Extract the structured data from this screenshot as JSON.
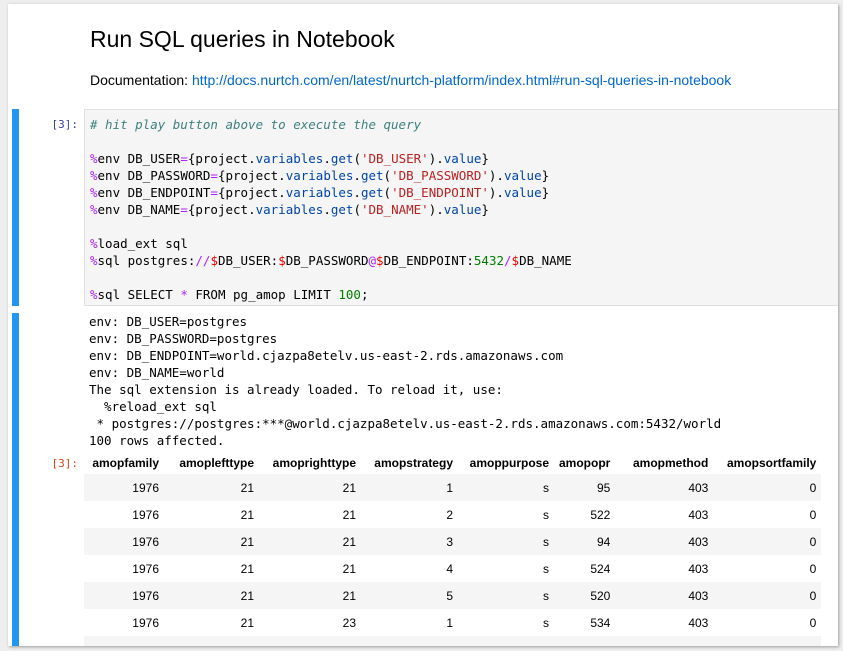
{
  "title": "Run SQL queries in Notebook",
  "doc_label": "Documentation: ",
  "doc_link": "http://docs.nurtch.com/en/latest/nurtch-platform/index.html#run-sql-queries-in-notebook",
  "cell": {
    "in_prompt": "[3]:",
    "out_prompt": "[3]:"
  },
  "code_lines": [
    "# hit play button above to execute the query",
    "",
    "%env DB_USER={project.variables.get('DB_USER').value}",
    "%env DB_PASSWORD={project.variables.get('DB_PASSWORD').value}",
    "%env DB_ENDPOINT={project.variables.get('DB_ENDPOINT').value}",
    "%env DB_NAME={project.variables.get('DB_NAME').value}",
    "",
    "%load_ext sql",
    "%sql postgres://$DB_USER:$DB_PASSWORD@$DB_ENDPOINT:5432/$DB_NAME",
    "",
    "%sql SELECT * FROM pg_amop LIMIT 100;"
  ],
  "output_text": "env: DB_USER=postgres\nenv: DB_PASSWORD=postgres\nenv: DB_ENDPOINT=world.cjazpa8etelv.us-east-2.rds.amazonaws.com\nenv: DB_NAME=world\nThe sql extension is already loaded. To reload it, use:\n  %reload_ext sql\n * postgres://postgres:***@world.cjazpa8etelv.us-east-2.rds.amazonaws.com:5432/world\n100 rows affected.",
  "table": {
    "columns": [
      "amopfamily",
      "amoplefttype",
      "amoprighttype",
      "amopstrategy",
      "amoppurpose",
      "amopopr",
      "amopmethod",
      "amopsortfamily"
    ],
    "rows": [
      [
        "1976",
        "21",
        "21",
        "1",
        "s",
        "95",
        "403",
        "0"
      ],
      [
        "1976",
        "21",
        "21",
        "2",
        "s",
        "522",
        "403",
        "0"
      ],
      [
        "1976",
        "21",
        "21",
        "3",
        "s",
        "94",
        "403",
        "0"
      ],
      [
        "1976",
        "21",
        "21",
        "4",
        "s",
        "524",
        "403",
        "0"
      ],
      [
        "1976",
        "21",
        "21",
        "5",
        "s",
        "520",
        "403",
        "0"
      ],
      [
        "1976",
        "21",
        "23",
        "1",
        "s",
        "534",
        "403",
        "0"
      ],
      [
        "",
        "",
        "",
        "",
        "",
        "",
        "",
        ""
      ]
    ]
  },
  "colors": {
    "accent": "#2196f3",
    "link": "#0066cc",
    "in_prompt": "#303f9f",
    "out_prompt": "#d84315"
  }
}
